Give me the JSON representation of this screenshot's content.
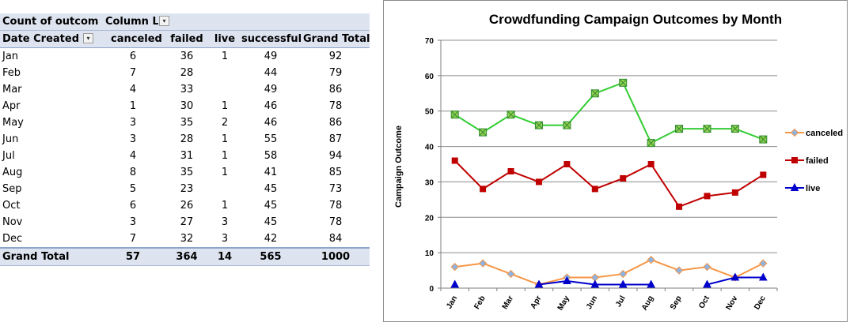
{
  "pivot": {
    "header1": {
      "label": "Count of outcom",
      "column_label": "Column Lab"
    },
    "header2": {
      "row_label": "Date Created",
      "columns": [
        "canceled",
        "failed",
        "live",
        "successful",
        "Grand Total"
      ]
    },
    "rows": [
      {
        "month": "Jan",
        "canceled": "6",
        "failed": "36",
        "live": "1",
        "successful": "49",
        "total": "92"
      },
      {
        "month": "Feb",
        "canceled": "7",
        "failed": "28",
        "live": "",
        "successful": "44",
        "total": "79"
      },
      {
        "month": "Mar",
        "canceled": "4",
        "failed": "33",
        "live": "",
        "successful": "49",
        "total": "86"
      },
      {
        "month": "Apr",
        "canceled": "1",
        "failed": "30",
        "live": "1",
        "successful": "46",
        "total": "78"
      },
      {
        "month": "May",
        "canceled": "3",
        "failed": "35",
        "live": "2",
        "successful": "46",
        "total": "86"
      },
      {
        "month": "Jun",
        "canceled": "3",
        "failed": "28",
        "live": "1",
        "successful": "55",
        "total": "87"
      },
      {
        "month": "Jul",
        "canceled": "4",
        "failed": "31",
        "live": "1",
        "successful": "58",
        "total": "94"
      },
      {
        "month": "Aug",
        "canceled": "8",
        "failed": "35",
        "live": "1",
        "successful": "41",
        "total": "85"
      },
      {
        "month": "Sep",
        "canceled": "5",
        "failed": "23",
        "live": "",
        "successful": "45",
        "total": "73"
      },
      {
        "month": "Oct",
        "canceled": "6",
        "failed": "26",
        "live": "1",
        "successful": "45",
        "total": "78"
      },
      {
        "month": "Nov",
        "canceled": "3",
        "failed": "27",
        "live": "3",
        "successful": "45",
        "total": "78"
      },
      {
        "month": "Dec",
        "canceled": "7",
        "failed": "32",
        "live": "3",
        "successful": "42",
        "total": "84"
      }
    ],
    "grand_total": {
      "label": "Grand Total",
      "canceled": "57",
      "failed": "364",
      "live": "14",
      "successful": "565",
      "total": "1000"
    },
    "icons": {
      "column_dropdown": "dropdown-arrow-icon",
      "row_filter": "filter-dropdown-icon"
    }
  },
  "chart_data": {
    "type": "line",
    "title": "Crowdfunding Campaign Outcomes by Month",
    "xlabel": "",
    "ylabel": "Campaign Outcome",
    "categories": [
      "Jan",
      "Feb",
      "Mar",
      "Apr",
      "May",
      "Jun",
      "Jul",
      "Aug",
      "Sep",
      "Oct",
      "Nov",
      "Dec"
    ],
    "ylim": [
      0,
      70
    ],
    "yticks": [
      0,
      10,
      20,
      30,
      40,
      50,
      60,
      70
    ],
    "grid": true,
    "legend_position": "right",
    "series": [
      {
        "name": "canceled",
        "color": "#f79646",
        "marker": "diamond",
        "show_in_legend": true,
        "values": [
          6,
          7,
          4,
          1,
          3,
          3,
          4,
          8,
          5,
          6,
          3,
          7
        ]
      },
      {
        "name": "failed",
        "color": "#c00000",
        "marker": "square",
        "show_in_legend": true,
        "values": [
          36,
          28,
          33,
          30,
          35,
          28,
          31,
          35,
          23,
          26,
          27,
          32
        ]
      },
      {
        "name": "live",
        "color": "#0000cc",
        "marker": "triangle",
        "show_in_legend": true,
        "values": [
          1,
          null,
          null,
          1,
          2,
          1,
          1,
          1,
          null,
          1,
          3,
          3
        ]
      },
      {
        "name": "successful",
        "color": "#33cc33",
        "marker": "x-square",
        "show_in_legend": false,
        "values": [
          49,
          44,
          49,
          46,
          46,
          55,
          58,
          41,
          45,
          45,
          45,
          42
        ]
      }
    ]
  }
}
